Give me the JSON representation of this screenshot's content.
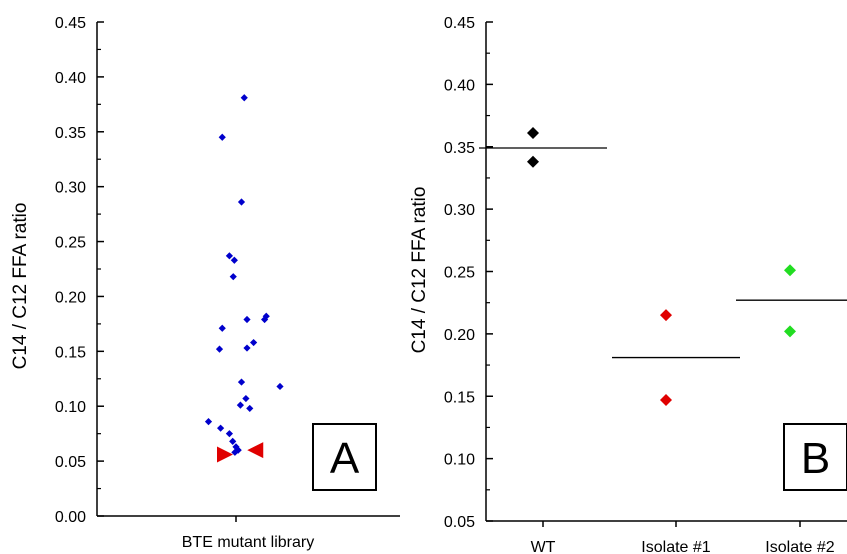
{
  "chart_data": [
    {
      "panel": "A",
      "type": "scatter",
      "title": "",
      "xlabel": "BTE mutant library",
      "ylabel": "C14 / C12 FFA ratio",
      "ylim": [
        0,
        0.45
      ],
      "yticks": [
        0.0,
        0.05,
        0.1,
        0.15,
        0.2,
        0.25,
        0.3,
        0.35,
        0.4,
        0.45
      ],
      "ytick_labels": [
        "0.00",
        "0.05",
        "0.10",
        "0.15",
        "0.20",
        "0.25",
        "0.30",
        "0.35",
        "0.40",
        "0.45"
      ],
      "category": "BTE mutant library",
      "grid": false,
      "series": [
        {
          "marker": "diamond",
          "color": "#0000cc",
          "points": [
            {
              "jitter": 0.15,
              "y": 0.381
            },
            {
              "jitter": -0.25,
              "y": 0.345
            },
            {
              "jitter": 0.1,
              "y": 0.286
            },
            {
              "jitter": -0.12,
              "y": 0.237
            },
            {
              "jitter": -0.03,
              "y": 0.233
            },
            {
              "jitter": -0.05,
              "y": 0.218
            },
            {
              "jitter": 0.55,
              "y": 0.182
            },
            {
              "jitter": 0.52,
              "y": 0.179
            },
            {
              "jitter": 0.2,
              "y": 0.179
            },
            {
              "jitter": -0.25,
              "y": 0.171
            },
            {
              "jitter": 0.32,
              "y": 0.158
            },
            {
              "jitter": 0.2,
              "y": 0.153
            },
            {
              "jitter": -0.3,
              "y": 0.152
            },
            {
              "jitter": 0.1,
              "y": 0.122
            },
            {
              "jitter": 0.8,
              "y": 0.118
            },
            {
              "jitter": 0.18,
              "y": 0.107
            },
            {
              "jitter": 0.08,
              "y": 0.101
            },
            {
              "jitter": 0.25,
              "y": 0.098
            },
            {
              "jitter": -0.5,
              "y": 0.086
            },
            {
              "jitter": -0.28,
              "y": 0.08
            },
            {
              "jitter": -0.12,
              "y": 0.075
            },
            {
              "jitter": -0.06,
              "y": 0.068
            },
            {
              "jitter": 0.0,
              "y": 0.063
            },
            {
              "jitter": 0.04,
              "y": 0.06
            },
            {
              "jitter": -0.02,
              "y": 0.058
            }
          ]
        },
        {
          "marker": "triangle-arrow",
          "color": "#e00000",
          "points": [
            {
              "jitter": -0.2,
              "y": 0.056,
              "direction": "right"
            },
            {
              "jitter": 0.35,
              "y": 0.06,
              "direction": "left"
            }
          ]
        }
      ],
      "panel_label": "A"
    },
    {
      "panel": "B",
      "type": "scatter",
      "title": "",
      "xlabel": "",
      "ylabel": "C14 / C12 FFA ratio",
      "ylim": [
        0.05,
        0.45
      ],
      "yticks": [
        0.05,
        0.1,
        0.15,
        0.2,
        0.25,
        0.3,
        0.35,
        0.4,
        0.45
      ],
      "ytick_labels": [
        "0.05",
        "0.10",
        "0.15",
        "0.20",
        "0.25",
        "0.30",
        "0.35",
        "0.40",
        "0.45"
      ],
      "categories": [
        "WT",
        "Isolate #1",
        "Isolate #2"
      ],
      "grid": false,
      "series": [
        {
          "category": "WT",
          "color": "#000000",
          "marker": "diamond",
          "values": [
            0.361,
            0.338
          ],
          "mean": 0.349
        },
        {
          "category": "Isolate #1",
          "color": "#e00000",
          "marker": "diamond",
          "values": [
            0.215,
            0.147
          ],
          "mean": 0.181
        },
        {
          "category": "Isolate #2",
          "color": "#22dd22",
          "marker": "diamond",
          "values": [
            0.251,
            0.202
          ],
          "mean": 0.227
        }
      ],
      "panel_label": "B"
    }
  ]
}
